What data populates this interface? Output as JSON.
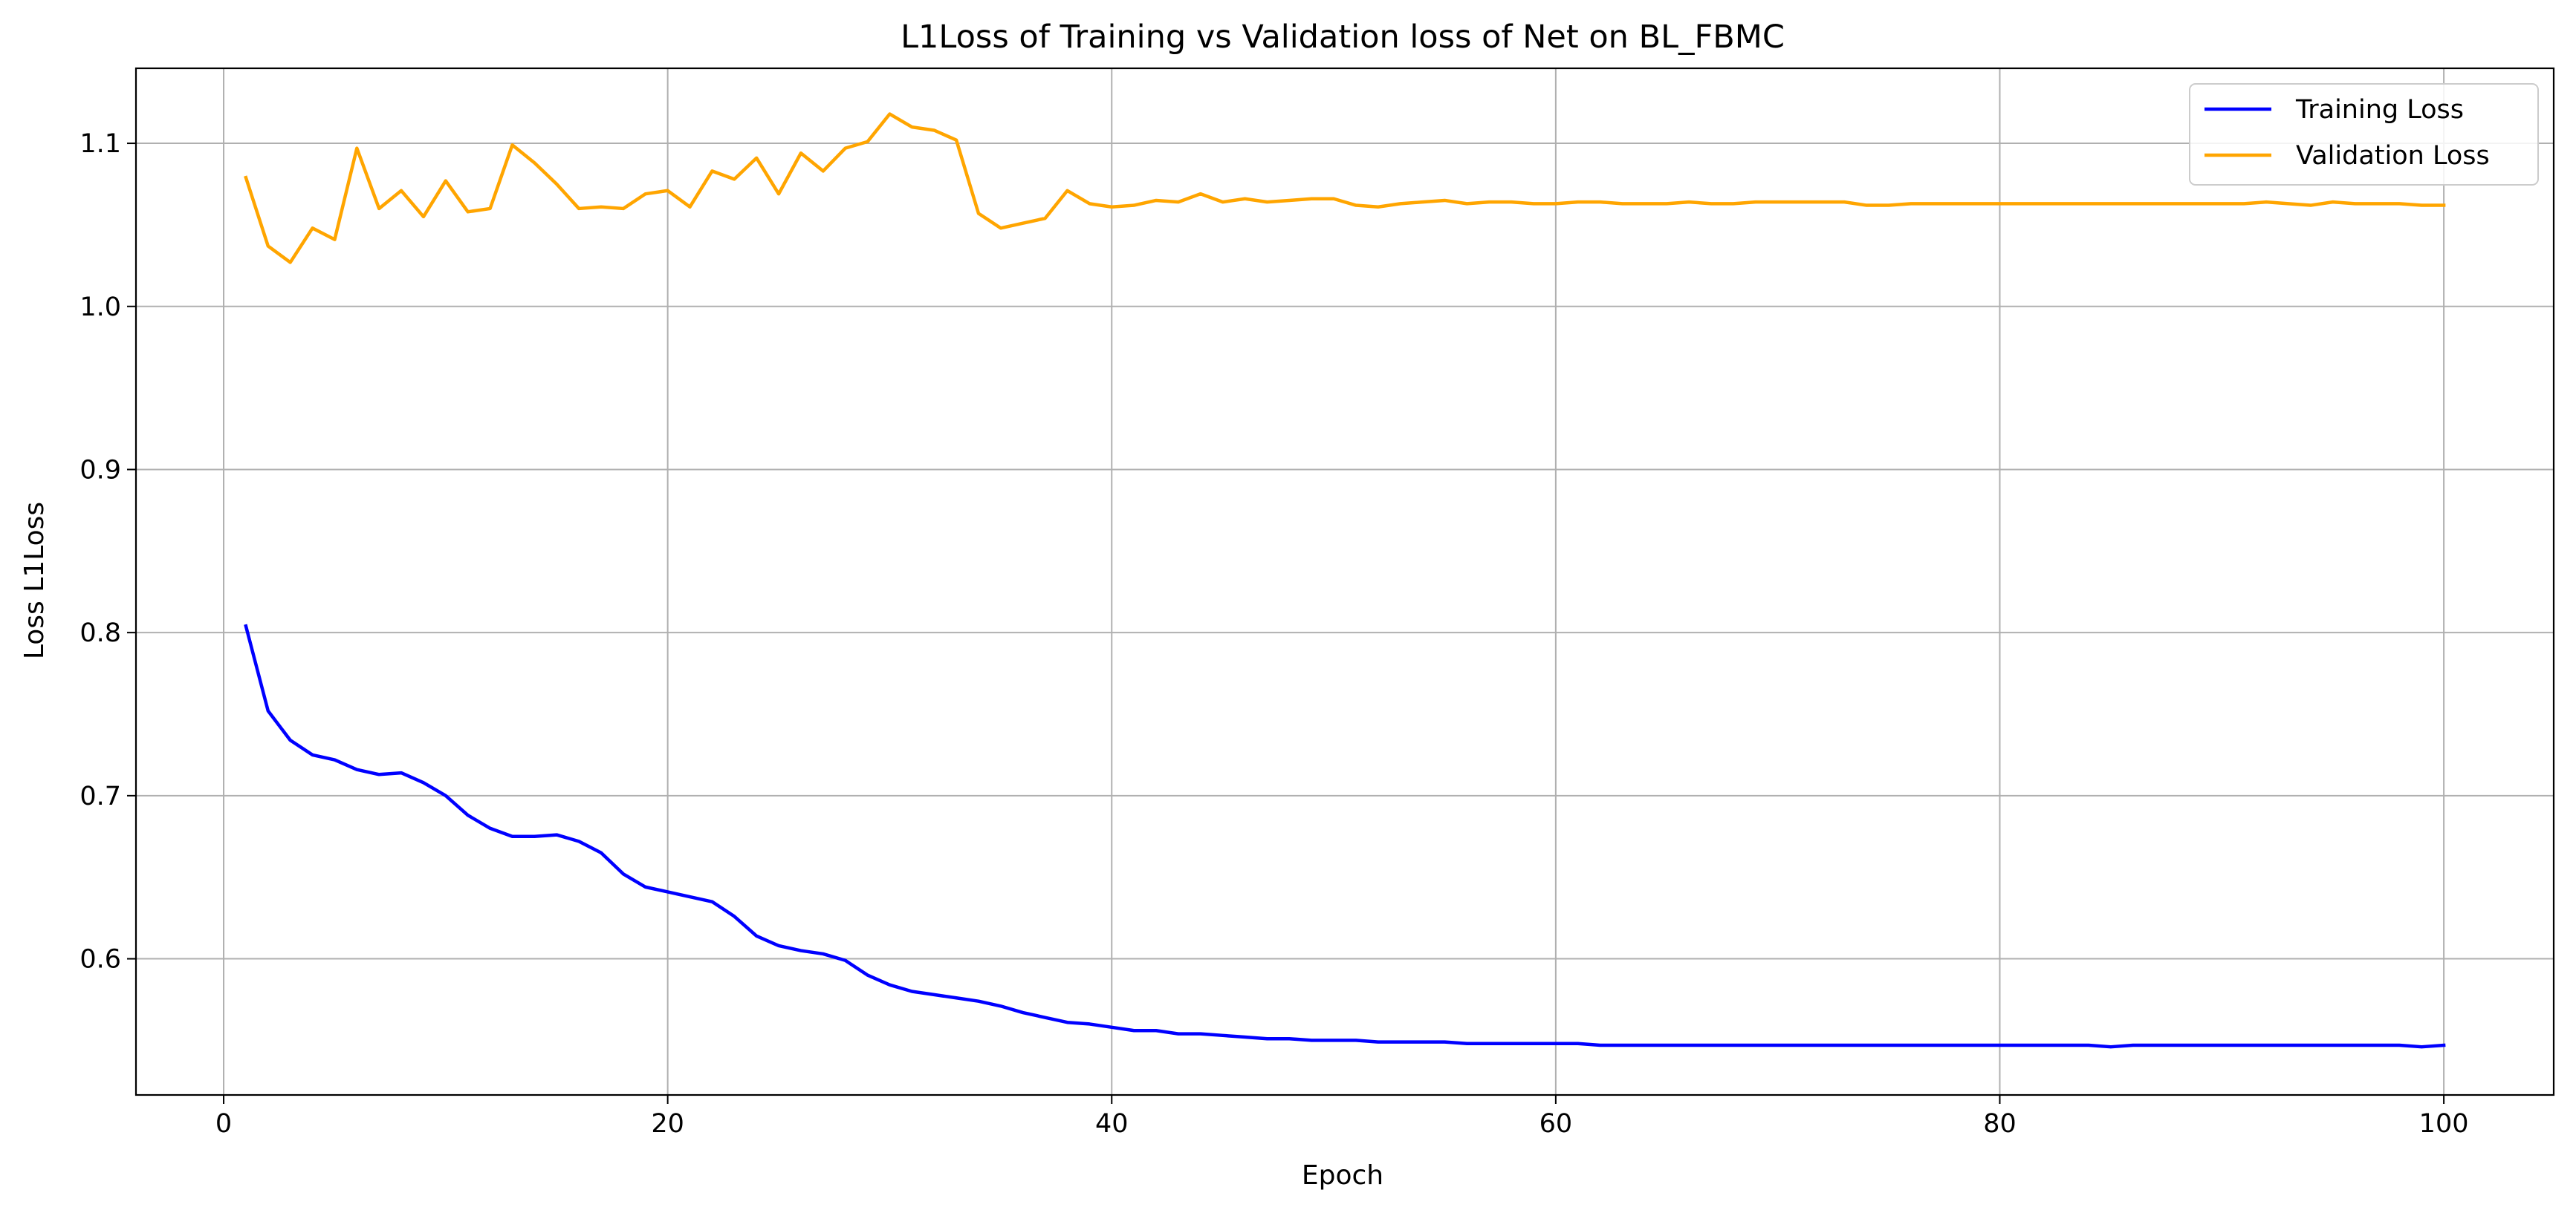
{
  "chart_data": {
    "type": "line",
    "title": "L1Loss of Training vs Validation loss of Net on BL_FBMC",
    "xlabel": "Epoch",
    "ylabel": "Loss L1Loss",
    "xlim": [
      -3.95,
      104.95
    ],
    "ylim": [
      0.5165,
      1.146
    ],
    "xticks": [
      0,
      20,
      40,
      60,
      80,
      100
    ],
    "xtick_labels": [
      "0",
      "20",
      "40",
      "60",
      "80",
      "100"
    ],
    "yticks": [
      0.6,
      0.7,
      0.8,
      0.9,
      1.0,
      1.1
    ],
    "ytick_labels": [
      "0.6",
      "0.7",
      "0.8",
      "0.9",
      "1.0",
      "1.1"
    ],
    "grid": true,
    "legend_position": "top-right",
    "x": [
      1,
      2,
      3,
      4,
      5,
      6,
      7,
      8,
      9,
      10,
      11,
      12,
      13,
      14,
      15,
      16,
      17,
      18,
      19,
      20,
      21,
      22,
      23,
      24,
      25,
      26,
      27,
      28,
      29,
      30,
      31,
      32,
      33,
      34,
      35,
      36,
      37,
      38,
      39,
      40,
      41,
      42,
      43,
      44,
      45,
      46,
      47,
      48,
      49,
      50,
      51,
      52,
      53,
      54,
      55,
      56,
      57,
      58,
      59,
      60,
      61,
      62,
      63,
      64,
      65,
      66,
      67,
      68,
      69,
      70,
      71,
      72,
      73,
      74,
      75,
      76,
      77,
      78,
      79,
      80,
      81,
      82,
      83,
      84,
      85,
      86,
      87,
      88,
      89,
      90,
      91,
      92,
      93,
      94,
      95,
      96,
      97,
      98,
      99,
      100
    ],
    "series": [
      {
        "name": "Training Loss",
        "color": "#0000ff",
        "values": [
          0.804,
          0.752,
          0.734,
          0.725,
          0.722,
          0.716,
          0.713,
          0.714,
          0.708,
          0.7,
          0.688,
          0.68,
          0.675,
          0.675,
          0.676,
          0.672,
          0.665,
          0.652,
          0.644,
          0.641,
          0.638,
          0.635,
          0.626,
          0.614,
          0.608,
          0.605,
          0.603,
          0.599,
          0.59,
          0.584,
          0.58,
          0.578,
          0.576,
          0.574,
          0.571,
          0.567,
          0.564,
          0.561,
          0.56,
          0.558,
          0.556,
          0.556,
          0.554,
          0.554,
          0.553,
          0.552,
          0.551,
          0.551,
          0.55,
          0.55,
          0.55,
          0.549,
          0.549,
          0.549,
          0.549,
          0.548,
          0.548,
          0.548,
          0.548,
          0.548,
          0.548,
          0.547,
          0.547,
          0.547,
          0.547,
          0.547,
          0.547,
          0.547,
          0.547,
          0.547,
          0.547,
          0.547,
          0.547,
          0.547,
          0.547,
          0.547,
          0.547,
          0.547,
          0.547,
          0.547,
          0.547,
          0.547,
          0.547,
          0.547,
          0.546,
          0.547,
          0.547,
          0.547,
          0.547,
          0.547,
          0.547,
          0.547,
          0.547,
          0.547,
          0.547,
          0.547,
          0.547,
          0.547,
          0.546,
          0.547
        ]
      },
      {
        "name": "Validation Loss",
        "color": "#ffa500",
        "values": [
          1.079,
          1.037,
          1.027,
          1.048,
          1.041,
          1.097,
          1.06,
          1.071,
          1.055,
          1.077,
          1.058,
          1.06,
          1.099,
          1.088,
          1.075,
          1.06,
          1.061,
          1.06,
          1.069,
          1.071,
          1.061,
          1.083,
          1.078,
          1.091,
          1.069,
          1.094,
          1.083,
          1.097,
          1.101,
          1.118,
          1.11,
          1.108,
          1.102,
          1.057,
          1.048,
          1.051,
          1.054,
          1.071,
          1.063,
          1.061,
          1.062,
          1.065,
          1.064,
          1.069,
          1.064,
          1.066,
          1.064,
          1.065,
          1.066,
          1.066,
          1.062,
          1.061,
          1.063,
          1.064,
          1.065,
          1.063,
          1.064,
          1.064,
          1.063,
          1.063,
          1.064,
          1.064,
          1.063,
          1.063,
          1.063,
          1.064,
          1.063,
          1.063,
          1.064,
          1.064,
          1.064,
          1.064,
          1.064,
          1.062,
          1.062,
          1.063,
          1.063,
          1.063,
          1.063,
          1.063,
          1.063,
          1.063,
          1.063,
          1.063,
          1.063,
          1.063,
          1.063,
          1.063,
          1.063,
          1.063,
          1.063,
          1.064,
          1.063,
          1.062,
          1.064,
          1.063,
          1.063,
          1.063,
          1.062,
          1.062
        ]
      }
    ]
  }
}
